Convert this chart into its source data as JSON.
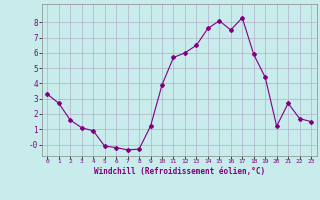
{
  "x": [
    0,
    1,
    2,
    3,
    4,
    5,
    6,
    7,
    8,
    9,
    10,
    11,
    12,
    13,
    14,
    15,
    16,
    17,
    18,
    19,
    20,
    21,
    22,
    23
  ],
  "y": [
    3.3,
    2.7,
    1.6,
    1.1,
    0.9,
    -0.1,
    -0.2,
    -0.35,
    -0.3,
    1.2,
    3.9,
    5.7,
    6.0,
    6.5,
    7.6,
    8.1,
    7.5,
    8.3,
    5.9,
    4.4,
    1.2,
    2.7,
    1.7,
    1.5
  ],
  "line_color": "#800080",
  "marker": "D",
  "marker_size": 2.0,
  "bg_color": "#c8ecec",
  "grid_color": "#b0b0c8",
  "xlabel": "Windchill (Refroidissement éolien,°C)",
  "xlabel_color": "#800080",
  "tick_color": "#800080",
  "xlim": [
    -0.5,
    23.5
  ],
  "ylim": [
    -0.75,
    9.2
  ],
  "yticks": [
    0,
    1,
    2,
    3,
    4,
    5,
    6,
    7,
    8
  ],
  "ytick_labels": [
    "-0",
    "1",
    "2",
    "3",
    "4",
    "5",
    "6",
    "7",
    "8"
  ],
  "xticks": [
    0,
    1,
    2,
    3,
    4,
    5,
    6,
    7,
    8,
    9,
    10,
    11,
    12,
    13,
    14,
    15,
    16,
    17,
    18,
    19,
    20,
    21,
    22,
    23
  ]
}
